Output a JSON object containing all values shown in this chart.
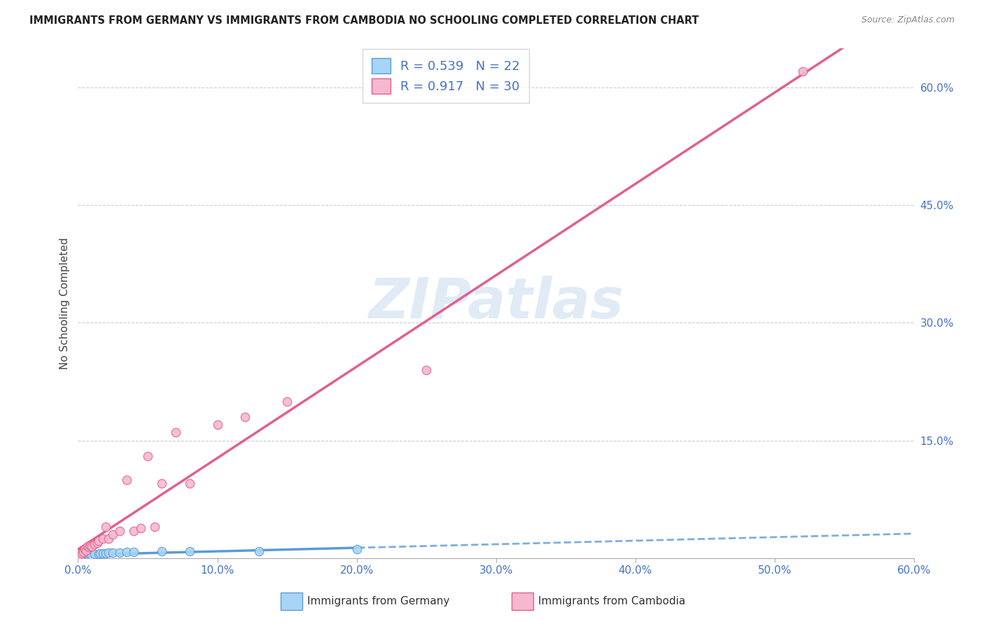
{
  "title": "IMMIGRANTS FROM GERMANY VS IMMIGRANTS FROM CAMBODIA NO SCHOOLING COMPLETED CORRELATION CHART",
  "source": "Source: ZipAtlas.com",
  "ylabel": "No Schooling Completed",
  "xlim": [
    0.0,
    0.6
  ],
  "ylim": [
    0.0,
    0.65
  ],
  "xtick_positions": [
    0.0,
    0.1,
    0.2,
    0.3,
    0.4,
    0.5,
    0.6
  ],
  "xtick_labels": [
    "0.0%",
    "10.0%",
    "20.0%",
    "30.0%",
    "40.0%",
    "50.0%",
    "60.0%"
  ],
  "ytick_positions": [
    0.15,
    0.3,
    0.45,
    0.6
  ],
  "ytick_labels": [
    "15.0%",
    "30.0%",
    "45.0%",
    "60.0%"
  ],
  "germany_color": "#A8D4F5",
  "cambodia_color": "#F5B8CE",
  "germany_line_color": "#5B9BD5",
  "cambodia_line_color": "#E06090",
  "legend_R_germany": "R = 0.539",
  "legend_N_germany": "N = 22",
  "legend_R_cambodia": "R = 0.917",
  "legend_N_cambodia": "N = 30",
  "background_color": "#FFFFFF",
  "grid_color": "#CCCCCC",
  "germany_x": [
    0.003,
    0.004,
    0.005,
    0.006,
    0.007,
    0.008,
    0.009,
    0.01,
    0.012,
    0.015,
    0.016,
    0.018,
    0.02,
    0.022,
    0.025,
    0.03,
    0.035,
    0.04,
    0.06,
    0.08,
    0.13,
    0.2
  ],
  "germany_y": [
    0.002,
    0.003,
    0.003,
    0.003,
    0.004,
    0.003,
    0.004,
    0.004,
    0.005,
    0.005,
    0.006,
    0.006,
    0.006,
    0.007,
    0.007,
    0.007,
    0.008,
    0.008,
    0.009,
    0.009,
    0.009,
    0.012
  ],
  "cambodia_x": [
    0.002,
    0.003,
    0.004,
    0.005,
    0.006,
    0.007,
    0.008,
    0.009,
    0.01,
    0.012,
    0.014,
    0.015,
    0.018,
    0.02,
    0.022,
    0.025,
    0.03,
    0.035,
    0.04,
    0.045,
    0.05,
    0.055,
    0.06,
    0.07,
    0.08,
    0.1,
    0.12,
    0.15,
    0.25,
    0.52
  ],
  "cambodia_y": [
    0.003,
    0.006,
    0.008,
    0.012,
    0.01,
    0.015,
    0.014,
    0.016,
    0.015,
    0.018,
    0.02,
    0.022,
    0.025,
    0.04,
    0.025,
    0.03,
    0.035,
    0.1,
    0.035,
    0.038,
    0.13,
    0.04,
    0.095,
    0.16,
    0.095,
    0.17,
    0.18,
    0.2,
    0.24,
    0.62
  ]
}
